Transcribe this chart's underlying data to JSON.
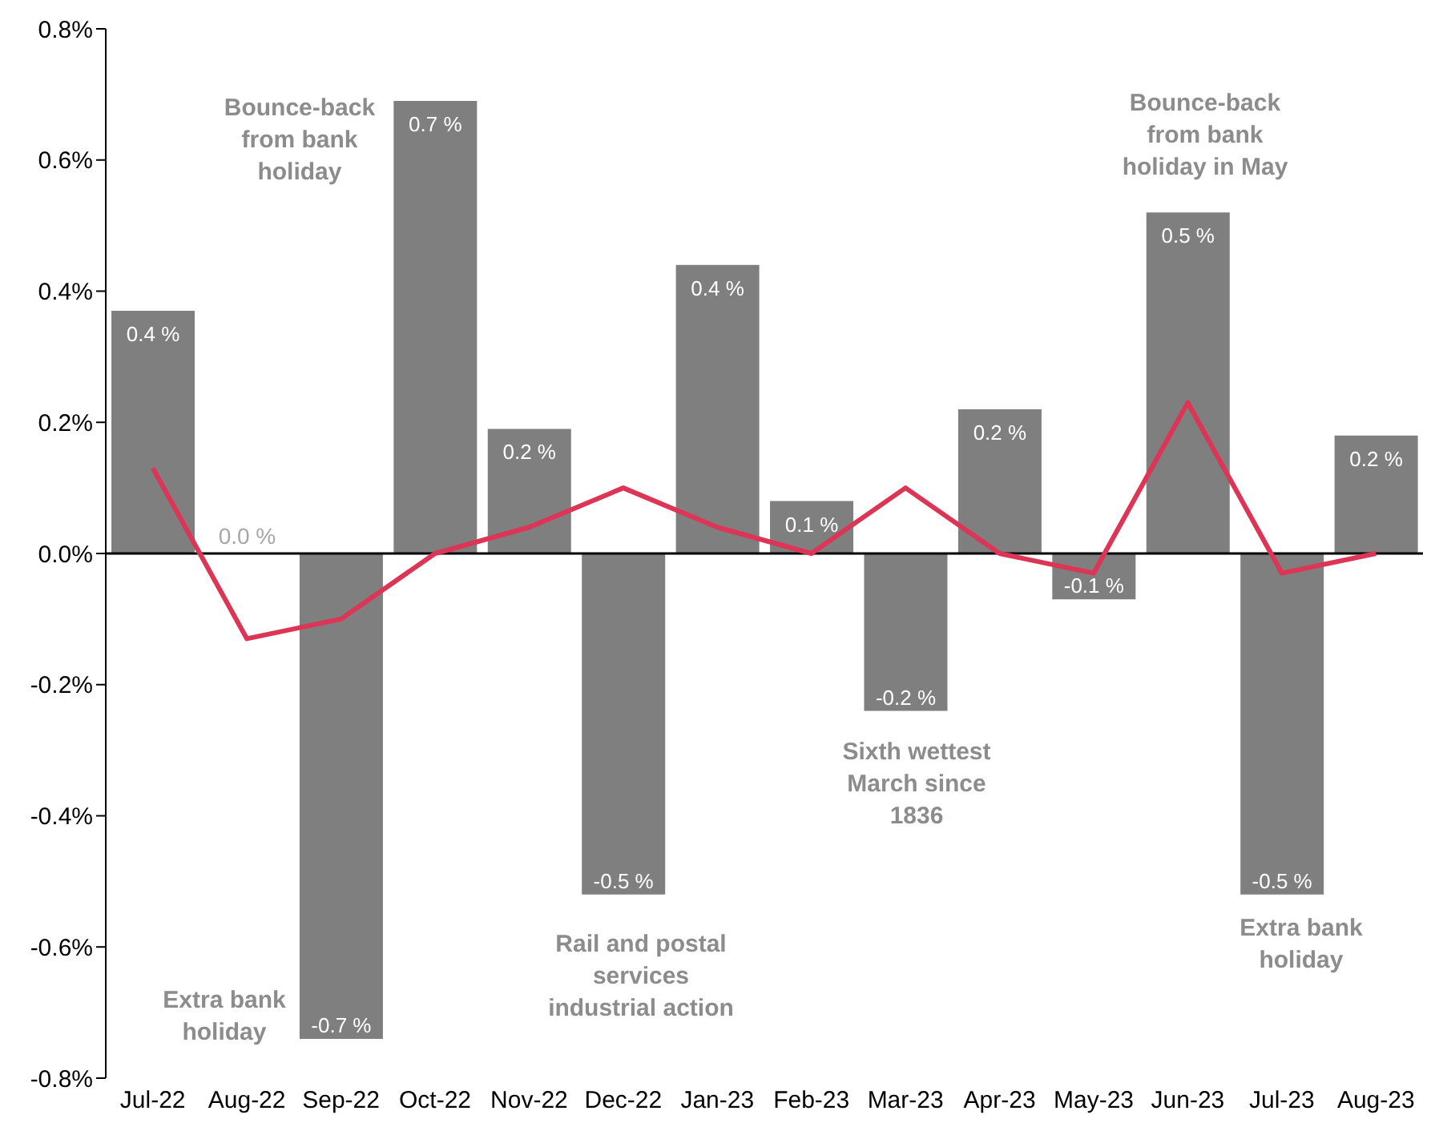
{
  "chart_data": {
    "type": "bar",
    "categories": [
      "Jul-22",
      "Aug-22",
      "Sep-22",
      "Oct-22",
      "Nov-22",
      "Dec-22",
      "Jan-23",
      "Feb-23",
      "Mar-23",
      "Apr-23",
      "May-23",
      "Jun-23",
      "Jul-23",
      "Aug-23"
    ],
    "series": [
      {
        "color": "#7f7f7f",
        "values": [
          0.37,
          0.0,
          -0.74,
          0.69,
          0.19,
          -0.52,
          0.44,
          0.08,
          -0.24,
          0.22,
          -0.07,
          0.52,
          -0.52,
          0.18
        ],
        "value_labels": [
          "0.4 %",
          "0.0 %",
          "-0.7 %",
          "0.7 %",
          "0.2 %",
          "-0.5 %",
          "0.4 %",
          "0.1 %",
          "-0.2 %",
          "0.2 %",
          "-0.1 %",
          "0.5 %",
          "-0.5 %",
          "0.2 %"
        ]
      },
      {
        "type": "line",
        "color": "#dc3555",
        "values": [
          0.13,
          -0.13,
          -0.1,
          0.0,
          0.04,
          0.1,
          0.04,
          0.0,
          0.1,
          0.0,
          -0.03,
          0.23,
          -0.03,
          0.0
        ]
      }
    ],
    "ylim": [
      -0.8,
      0.8
    ],
    "yticks": [
      {
        "value": -0.8,
        "label": "-0.8%"
      },
      {
        "value": -0.6,
        "label": "-0.6%"
      },
      {
        "value": -0.4,
        "label": "-0.4%"
      },
      {
        "value": -0.2,
        "label": "-0.2%"
      },
      {
        "value": 0,
        "label": "0.0%"
      },
      {
        "value": 0.2,
        "label": "0.2%"
      },
      {
        "value": 0.4,
        "label": "0.4%"
      },
      {
        "value": 0.6,
        "label": "0.6%"
      },
      {
        "value": 0.8,
        "label": "0.8%"
      }
    ],
    "annotations": [
      "Bounce-back\nfrom bank\nholiday",
      "Extra bank\nholiday",
      "Rail and postal\nservices\nindustrial action",
      "Sixth wettest\nMarch since\n1836",
      "Bounce-back\nfrom bank\nholiday in May",
      "Extra bank\nholiday"
    ],
    "ref_lines": [
      {
        "axis": "y",
        "value": 0,
        "color": "#000000",
        "line_style": "solid"
      }
    ],
    "grid": false,
    "legend": false,
    "line_style": "solid",
    "marker": "none"
  }
}
